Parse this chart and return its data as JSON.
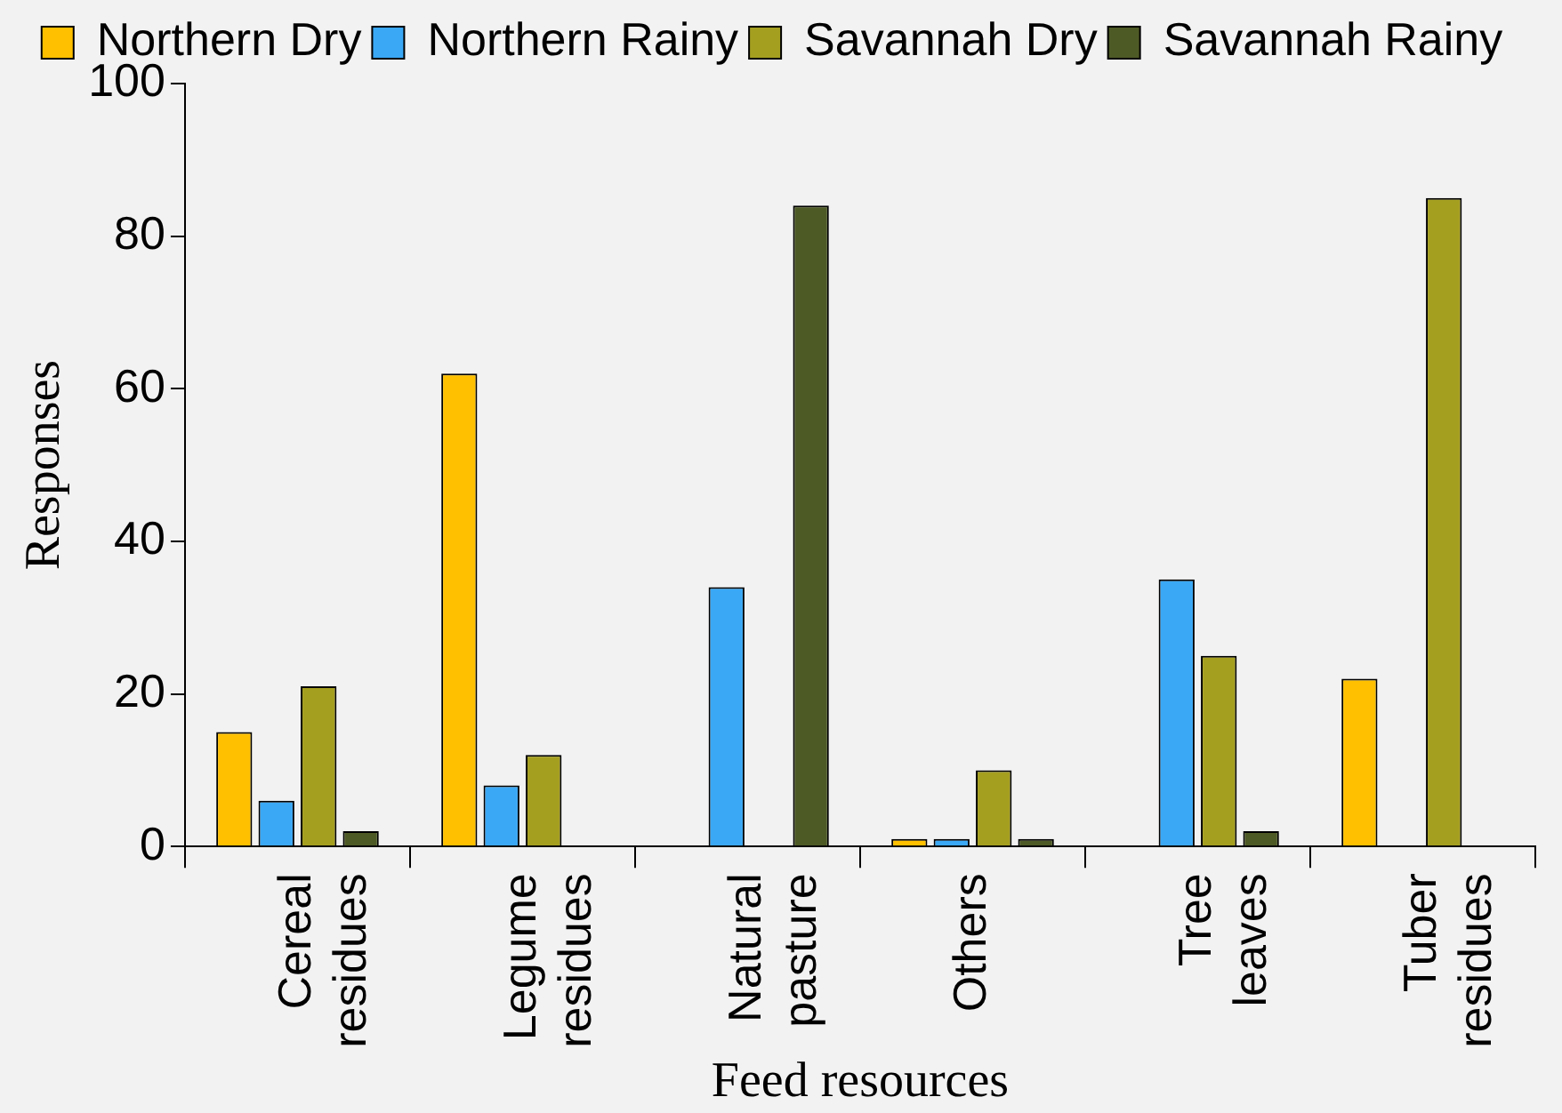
{
  "chart_data": {
    "type": "bar",
    "xlabel": "Feed resources",
    "ylabel": "Responses",
    "categories": [
      "Cereal residues",
      "Legume residues",
      "Natural pasture",
      "Others",
      "Tree leaves",
      "Tuber residues"
    ],
    "series": [
      {
        "name": "Northern Dry",
        "color": "#ffc000",
        "values": [
          15,
          62,
          0,
          1,
          0,
          22
        ]
      },
      {
        "name": "Northern Rainy",
        "color": "#3aa8f5",
        "values": [
          6,
          8,
          34,
          1,
          35,
          0
        ]
      },
      {
        "name": "Savannah Dry",
        "color": "#a59f20",
        "values": [
          21,
          12,
          0,
          10,
          25,
          85
        ]
      },
      {
        "name": "Savannah Rainy",
        "color": "#4e5a26",
        "values": [
          2,
          0,
          84,
          1,
          2,
          0
        ]
      }
    ],
    "ylim": [
      0,
      100
    ],
    "yticks": [
      0,
      20,
      40,
      60,
      80,
      100
    ],
    "grid": false,
    "legend": "top"
  }
}
